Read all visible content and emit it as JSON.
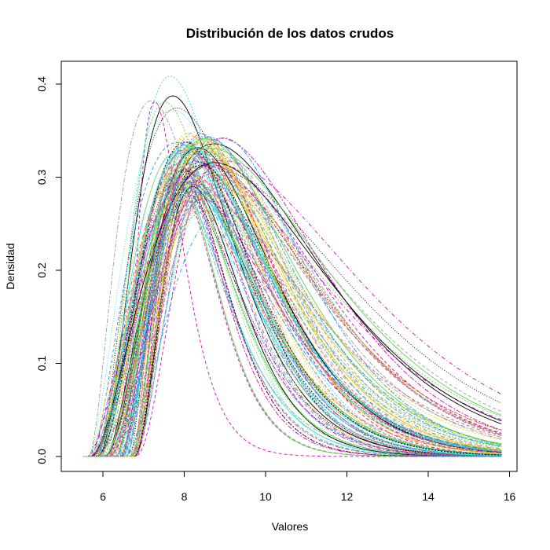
{
  "chart_data": {
    "type": "line",
    "title": "Distribución de los datos crudos",
    "xlabel": "Valores",
    "ylabel": "Densidad",
    "xlim": [
      5.0,
      16.0
    ],
    "ylim": [
      0.0,
      0.42
    ],
    "x_ticks": [
      6,
      8,
      10,
      12,
      14,
      16
    ],
    "y_ticks": [
      0.0,
      0.1,
      0.2,
      0.3,
      0.4
    ],
    "x_tick_labels": [
      "6",
      "8",
      "10",
      "12",
      "14",
      "16"
    ],
    "y_tick_labels": [
      "0.0",
      "0.1",
      "0.2",
      "0.3",
      "0.4"
    ],
    "grid": false,
    "legend": "none",
    "palette": [
      "#000000",
      "#DF536B",
      "#61D04F",
      "#2297E6",
      "#28E2E5",
      "#CD0BBC",
      "#F5C710",
      "#9E9E9E"
    ],
    "series_count": 120,
    "density_support": [
      5.5,
      15.8
    ],
    "mode_range": [
      7.1,
      9.0
    ],
    "peak_density_range": [
      0.26,
      0.41
    ]
  }
}
